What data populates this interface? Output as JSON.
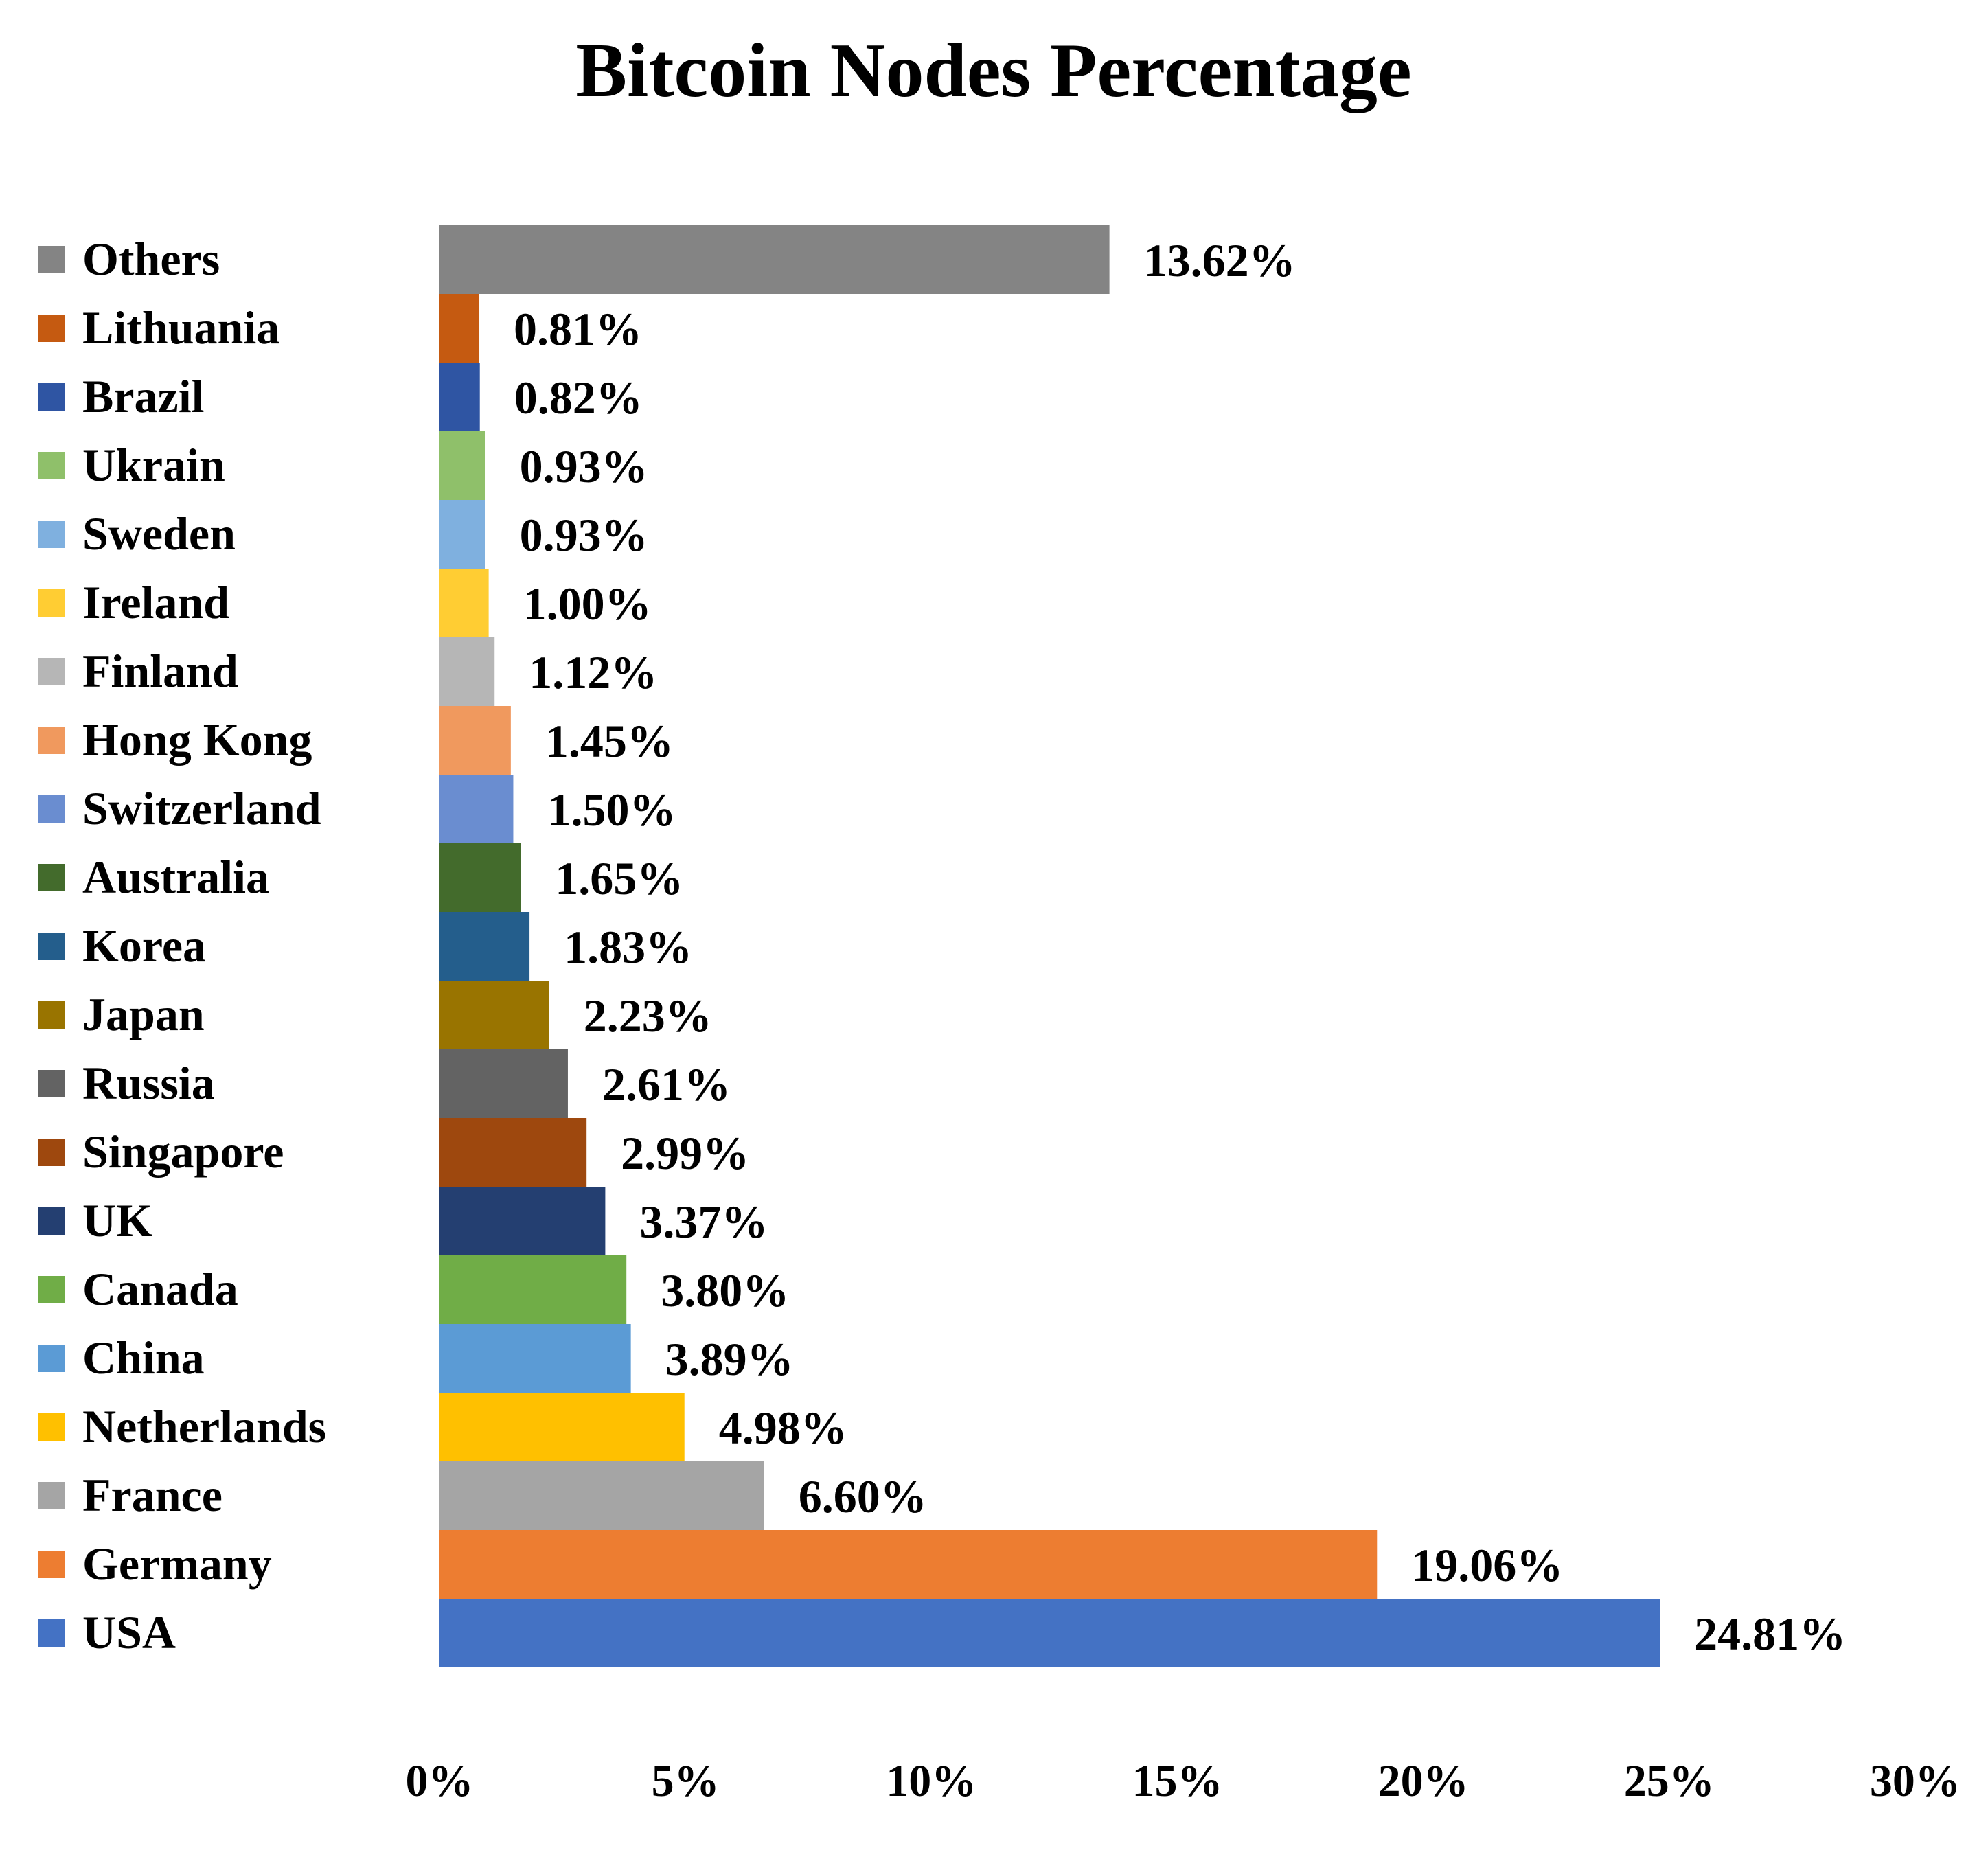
{
  "chart_data": {
    "type": "bar",
    "orientation": "horizontal",
    "title": "Bitcoin Nodes Percentage",
    "xlabel": "",
    "ylabel": "",
    "xlim": [
      0,
      30
    ],
    "grid": false,
    "legend": "left",
    "tick_labels": [
      "0%",
      "5%",
      "10%",
      "15%",
      "20%",
      "25%",
      "30%"
    ],
    "tick_values": [
      0,
      5,
      10,
      15,
      20,
      25,
      30
    ],
    "categories": [
      "Others",
      "Lithuania",
      "Brazil",
      "Ukrain",
      "Sweden",
      "Ireland",
      "Finland",
      "Hong Kong",
      "Switzerland",
      "Australia",
      "Korea",
      "Japan",
      "Russia",
      "Singapore",
      "UK",
      "Canada",
      "China",
      "Netherlands",
      "France",
      "Germany",
      "USA"
    ],
    "values": [
      13.62,
      0.81,
      0.82,
      0.93,
      0.93,
      1.0,
      1.12,
      1.45,
      1.5,
      1.65,
      1.83,
      2.23,
      2.61,
      2.99,
      3.37,
      3.8,
      3.89,
      4.98,
      6.6,
      19.06,
      24.81
    ],
    "data_labels": [
      "13.62%",
      "0.81%",
      "0.82%",
      "0.93%",
      "0.93%",
      "1.00%",
      "1.12%",
      "1.45%",
      "1.50%",
      "1.65%",
      "1.83%",
      "2.23%",
      "2.61%",
      "2.99%",
      "3.37%",
      "3.80%",
      "3.89%",
      "4.98%",
      "6.60%",
      "19.06%",
      "24.81%"
    ],
    "colors": [
      "#848484",
      "#c55a11",
      "#2f55a3",
      "#8fc06a",
      "#7fb0df",
      "#ffcd33",
      "#b6b6b6",
      "#f0995e",
      "#6a8dd0",
      "#436b2c",
      "#245e8c",
      "#997400",
      "#636363",
      "#9e480e",
      "#243f71",
      "#70ad47",
      "#5b9bd5",
      "#ffc000",
      "#a5a5a5",
      "#ed7d31",
      "#4472c4"
    ]
  }
}
